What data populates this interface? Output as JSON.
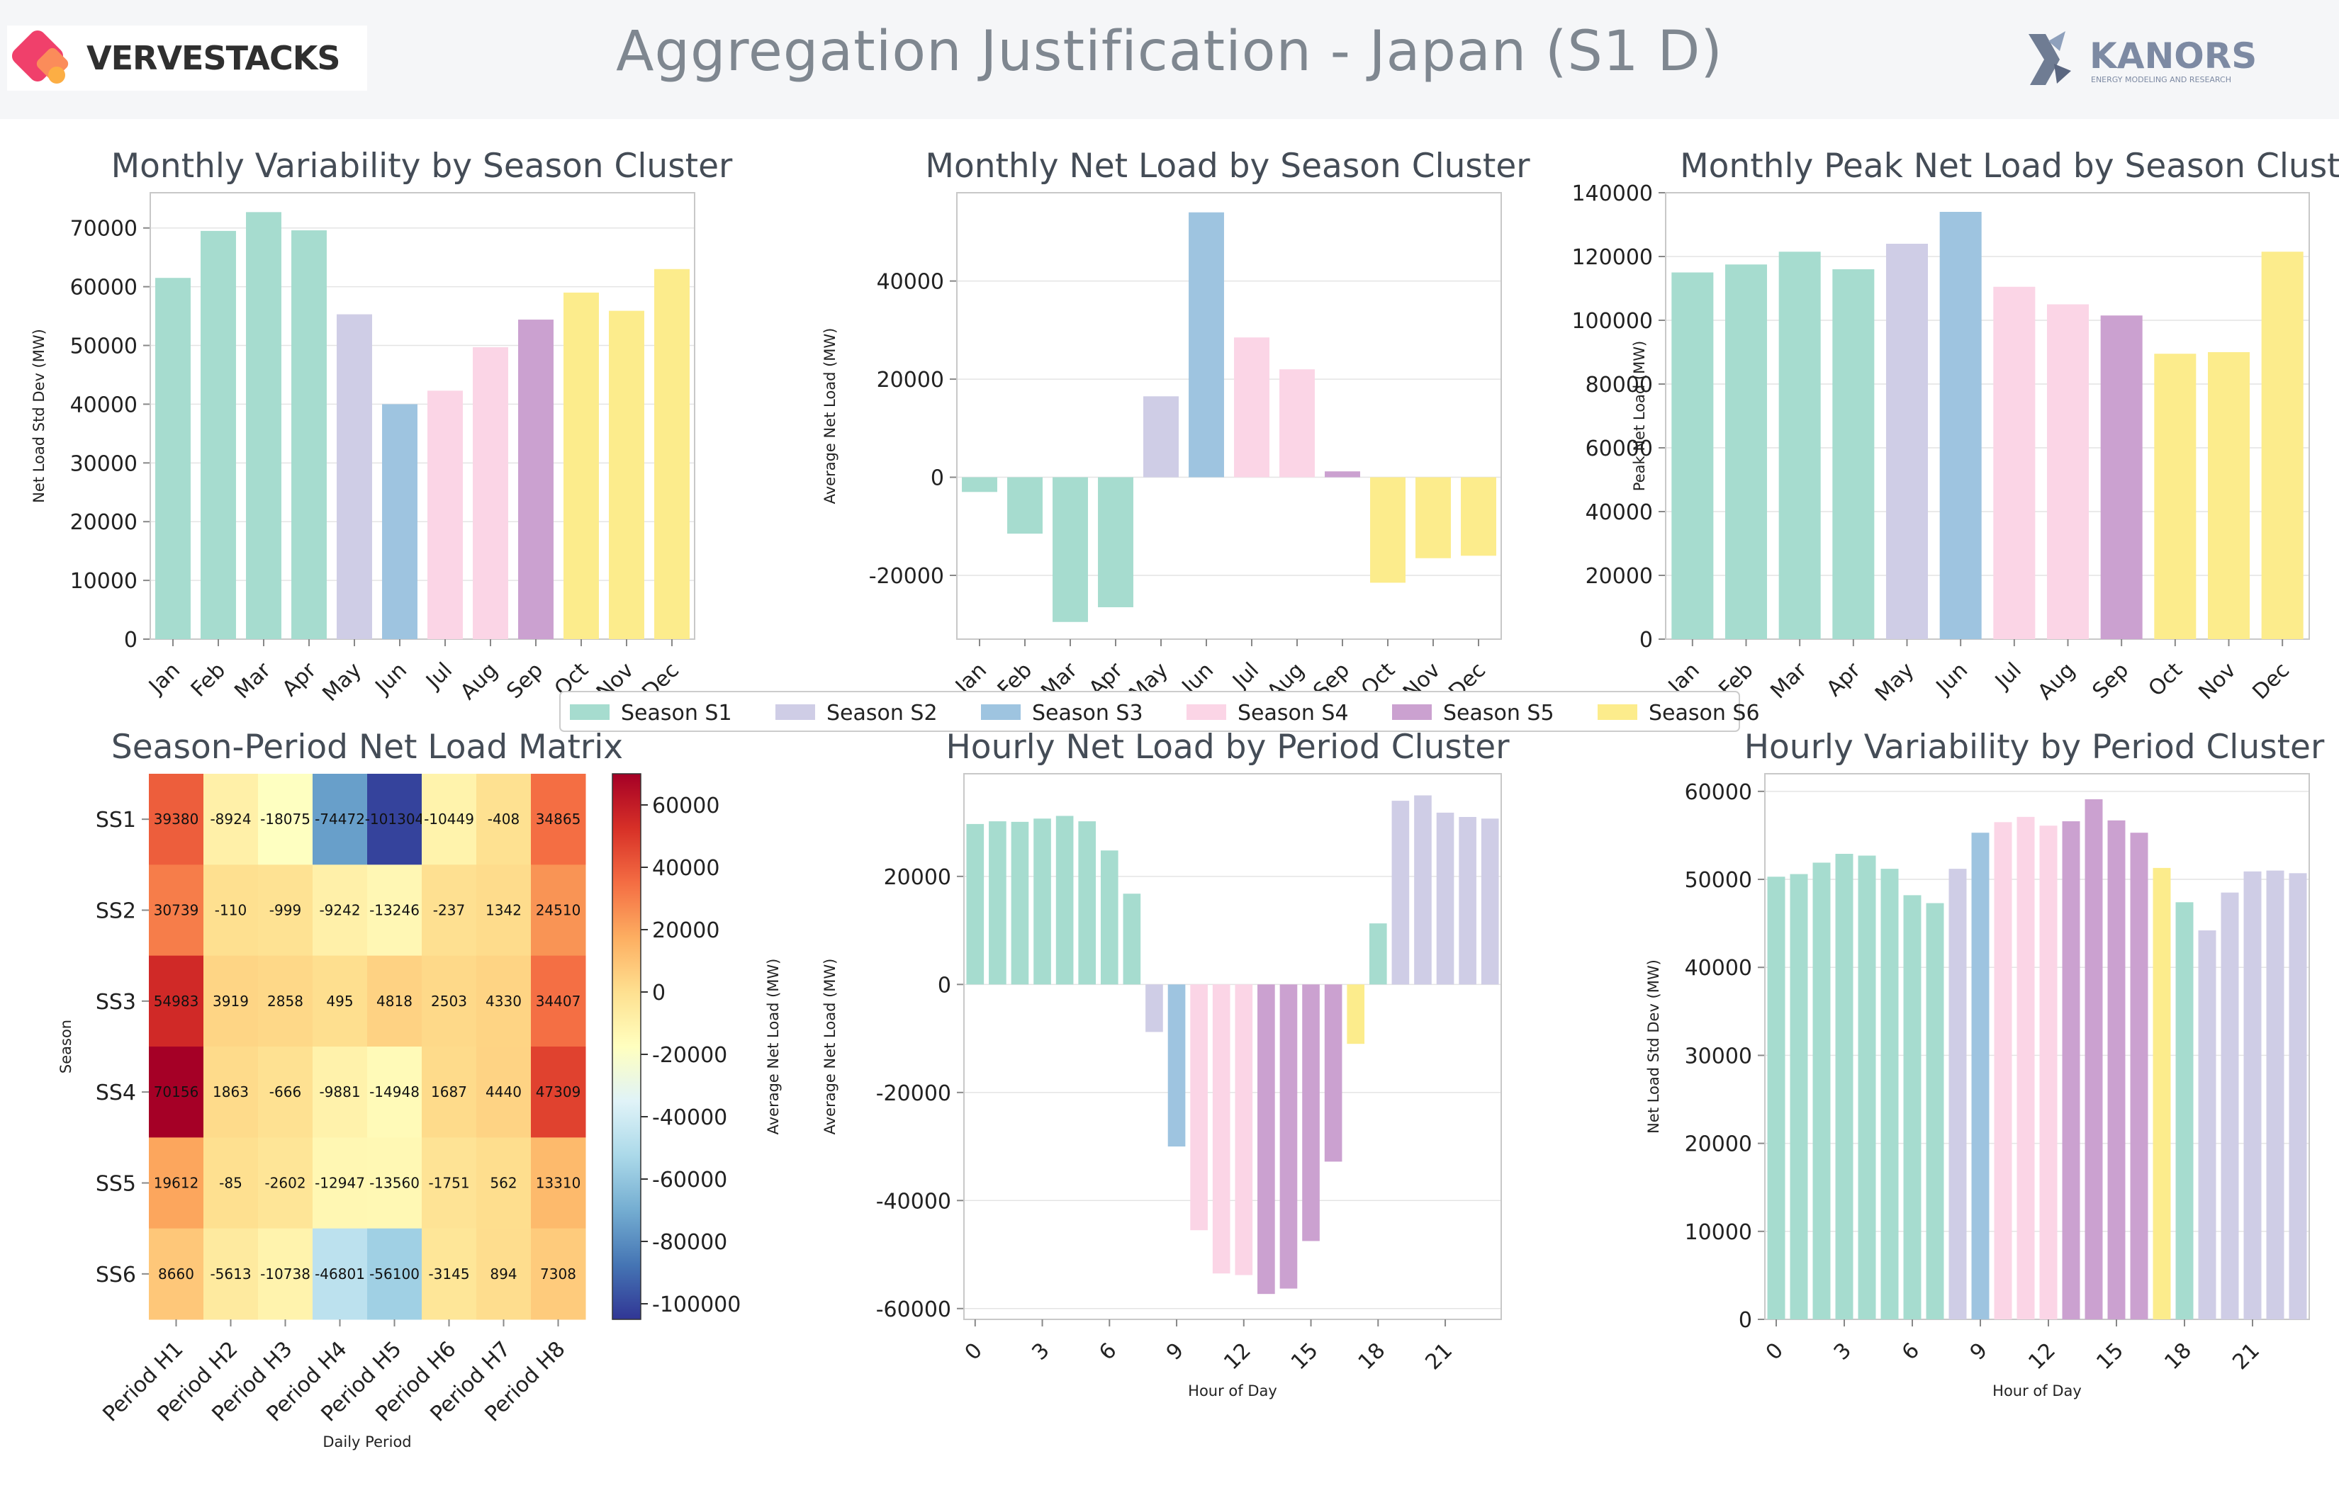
{
  "header": {
    "title": "Aggregation Justification - Japan (S1 D)",
    "logo_left_text": "VERVESTACKS",
    "logo_right_text": "KANORS",
    "logo_right_sub": "ENERGY MODELING AND RESEARCH"
  },
  "colors": {
    "S1": "#a6dccf",
    "S2": "#cfcde6",
    "S3": "#9ec4e0",
    "S4": "#fbd5e6",
    "S5": "#cba1d0",
    "S6": "#fcec8c"
  },
  "legend": [
    "Season S1",
    "Season S2",
    "Season S3",
    "Season S4",
    "Season S5",
    "Season S6"
  ],
  "chart_data": [
    {
      "id": "monthly-variability",
      "type": "bar",
      "title": "Monthly Variability by Season Cluster",
      "xlabel": "",
      "ylabel": "Net Load Std Dev (MW)",
      "ylim": [
        0,
        76000
      ],
      "yticks": [
        0,
        10000,
        20000,
        30000,
        40000,
        50000,
        60000,
        70000
      ],
      "categories": [
        "Jan",
        "Feb",
        "Mar",
        "Apr",
        "May",
        "Jun",
        "Jul",
        "Aug",
        "Sep",
        "Oct",
        "Nov",
        "Dec"
      ],
      "values": [
        61500,
        69500,
        72700,
        69600,
        55300,
        40000,
        42300,
        49700,
        54400,
        59000,
        55900,
        63000
      ],
      "groups": [
        "S1",
        "S1",
        "S1",
        "S1",
        "S2",
        "S3",
        "S4",
        "S4",
        "S5",
        "S6",
        "S6",
        "S6"
      ]
    },
    {
      "id": "monthly-net-load",
      "type": "bar",
      "title": "Monthly Net Load by Season Cluster",
      "xlabel": "",
      "ylabel": "Average Net Load (MW)",
      "ylim": [
        -33000,
        58000
      ],
      "yticks": [
        -20000,
        0,
        20000,
        40000
      ],
      "categories": [
        "Jan",
        "Feb",
        "Mar",
        "Apr",
        "May",
        "Jun",
        "Jul",
        "Aug",
        "Sep",
        "Oct",
        "Nov",
        "Dec"
      ],
      "values": [
        -3000,
        -11500,
        -29500,
        -26500,
        16500,
        54000,
        28500,
        22000,
        1200,
        -21500,
        -16500,
        -16000
      ],
      "groups": [
        "S1",
        "S1",
        "S1",
        "S1",
        "S2",
        "S3",
        "S4",
        "S4",
        "S5",
        "S6",
        "S6",
        "S6"
      ]
    },
    {
      "id": "monthly-peak-net-load",
      "type": "bar",
      "title": "Monthly Peak Net Load by Season Cluster",
      "xlabel": "",
      "ylabel": "Peak Net Load (MW)",
      "ylim": [
        0,
        140000
      ],
      "yticks": [
        0,
        20000,
        40000,
        60000,
        80000,
        100000,
        120000,
        140000
      ],
      "categories": [
        "Jan",
        "Feb",
        "Mar",
        "Apr",
        "May",
        "Jun",
        "Jul",
        "Aug",
        "Sep",
        "Oct",
        "Nov",
        "Dec"
      ],
      "values": [
        115000,
        117500,
        121500,
        116000,
        124000,
        134000,
        110500,
        105000,
        101500,
        89500,
        90000,
        121500
      ],
      "groups": [
        "S1",
        "S1",
        "S1",
        "S1",
        "S2",
        "S3",
        "S4",
        "S4",
        "S5",
        "S6",
        "S6",
        "S6"
      ]
    },
    {
      "id": "season-period-matrix",
      "type": "heatmap",
      "title": "Season-Period Net Load Matrix",
      "xlabel": "Daily Period",
      "ylabel": "Season",
      "colorbar_label": "Average Net Load (MW)",
      "colorbar_range": [
        -105000,
        70000
      ],
      "colorbar_ticks": [
        60000,
        40000,
        20000,
        0,
        -20000,
        -40000,
        -60000,
        -80000,
        -100000
      ],
      "rows": [
        "SS1",
        "SS2",
        "SS3",
        "SS4",
        "SS5",
        "SS6"
      ],
      "cols": [
        "Period H1",
        "Period H2",
        "Period H3",
        "Period H4",
        "Period H5",
        "Period H6",
        "Period H7",
        "Period H8"
      ],
      "values": [
        [
          39380,
          -8924,
          -18075,
          -74472,
          -101304,
          -10449,
          -408,
          34865
        ],
        [
          30739,
          -110,
          -999,
          -9242,
          -13246,
          -237,
          1342,
          24510
        ],
        [
          54983,
          3919,
          2858,
          495,
          4818,
          2503,
          4330,
          34407
        ],
        [
          70156,
          1863,
          -666,
          -9881,
          -14948,
          1687,
          4440,
          47309
        ],
        [
          19612,
          -85,
          -2602,
          -12947,
          -13560,
          -1751,
          562,
          13310
        ],
        [
          8660,
          -5613,
          -10738,
          -46801,
          -56100,
          -3145,
          894,
          7308
        ]
      ]
    },
    {
      "id": "hourly-net-load",
      "type": "bar",
      "title": "Hourly Net Load by Period Cluster",
      "xlabel": "Hour of Day",
      "ylabel": "Average Net Load (MW)",
      "ylim": [
        -62000,
        39000
      ],
      "yticks": [
        -60000,
        -40000,
        -20000,
        0,
        20000
      ],
      "xticks": [
        0,
        3,
        6,
        9,
        12,
        15,
        18,
        21
      ],
      "categories": [
        0,
        1,
        2,
        3,
        4,
        5,
        6,
        7,
        8,
        9,
        10,
        11,
        12,
        13,
        14,
        15,
        16,
        17,
        18,
        19,
        20,
        21,
        22,
        23
      ],
      "values": [
        29700,
        30200,
        30100,
        30700,
        31200,
        30200,
        24800,
        16800,
        -8800,
        -30000,
        -45500,
        -53500,
        -53800,
        -57300,
        -56300,
        -47500,
        -32800,
        -11000,
        11300,
        34000,
        35000,
        31800,
        31000,
        30700
      ],
      "groups": [
        "S1",
        "S1",
        "S1",
        "S1",
        "S1",
        "S1",
        "S1",
        "S1",
        "S2",
        "S3",
        "S4",
        "S4",
        "S4",
        "S5",
        "S5",
        "S5",
        "S5",
        "S6",
        "S1",
        "S2",
        "S2",
        "S2",
        "S2",
        "S2"
      ]
    },
    {
      "id": "hourly-variability",
      "type": "bar",
      "title": "Hourly Variability by Period Cluster",
      "xlabel": "Hour of Day",
      "ylabel": "Net Load Std Dev (MW)",
      "ylim": [
        0,
        62000
      ],
      "yticks": [
        0,
        10000,
        20000,
        30000,
        40000,
        50000,
        60000
      ],
      "xticks": [
        0,
        3,
        6,
        9,
        12,
        15,
        18,
        21
      ],
      "categories": [
        0,
        1,
        2,
        3,
        4,
        5,
        6,
        7,
        8,
        9,
        10,
        11,
        12,
        13,
        14,
        15,
        16,
        17,
        18,
        19,
        20,
        21,
        22,
        23
      ],
      "values": [
        50300,
        50600,
        51900,
        52900,
        52700,
        51200,
        48200,
        47300,
        51200,
        55300,
        56500,
        57100,
        56100,
        56600,
        59100,
        56700,
        55300,
        51300,
        47400,
        44200,
        48500,
        50900,
        51000,
        50700
      ],
      "groups": [
        "S1",
        "S1",
        "S1",
        "S1",
        "S1",
        "S1",
        "S1",
        "S1",
        "S2",
        "S3",
        "S4",
        "S4",
        "S4",
        "S5",
        "S5",
        "S5",
        "S5",
        "S6",
        "S1",
        "S2",
        "S2",
        "S2",
        "S2",
        "S2"
      ]
    }
  ]
}
